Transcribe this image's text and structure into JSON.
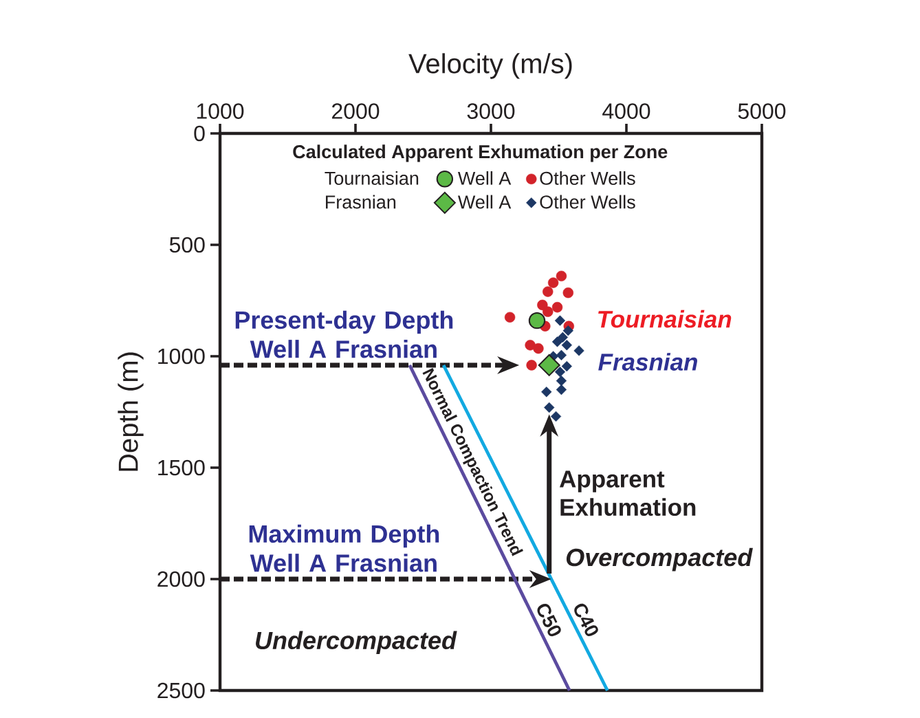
{
  "chart_data": {
    "type": "scatter",
    "xlabel": "Velocity (m/s)",
    "ylabel": "Depth (m)",
    "xlim": [
      1000,
      5000
    ],
    "xticks": [
      1000,
      2000,
      3000,
      4000,
      5000
    ],
    "ylim": [
      2500,
      0
    ],
    "yticks": [
      0,
      500,
      1000,
      1500,
      2000,
      2500
    ],
    "legend": "top",
    "legend_title": "Calculated Apparent Exhumation per Zone",
    "series": [
      {
        "name": "Well A",
        "color": "#5cb946",
        "marker": "circle",
        "x": [
          3340
        ],
        "values": [
          840
        ]
      },
      {
        "name": "Other Wells",
        "color": "#d2232a",
        "marker": "circle",
        "x": [
          3520,
          3460,
          3420,
          3570,
          3380,
          3490,
          3420,
          3140,
          3400,
          3575,
          3290,
          3350,
          3300
        ],
        "values": [
          640,
          670,
          710,
          715,
          770,
          780,
          800,
          825,
          865,
          865,
          950,
          965,
          1040
        ]
      },
      {
        "name": "Well A",
        "color": "#5cb946",
        "marker": "diamond",
        "x": [
          3430
        ],
        "values": [
          1040
        ]
      },
      {
        "name": "Other Wells",
        "color": "#1c3764",
        "marker": "diamond",
        "x": [
          3510,
          3570,
          3530,
          3490,
          3560,
          3650,
          3520,
          3460,
          3560,
          3510,
          3520,
          3410,
          3520,
          3430,
          3480
        ],
        "values": [
          840,
          885,
          915,
          935,
          950,
          975,
          995,
          1000,
          1045,
          1070,
          1110,
          1160,
          1150,
          1230,
          1270
        ]
      },
      {
        "name": "C50",
        "type": "line",
        "color": "#5b4b9f",
        "x": [
          2400,
          3580
        ],
        "values": [
          1040,
          2500
        ]
      },
      {
        "name": "C40",
        "type": "line",
        "color": "#12a9e1",
        "x": [
          2650,
          3860
        ],
        "values": [
          1040,
          2500
        ]
      }
    ],
    "ref_lines": [
      {
        "axis": "y",
        "value": 1040,
        "label": "Present-day Depth Well A Frasnian",
        "line_style": "dashed",
        "color": "#231f20"
      },
      {
        "axis": "y",
        "value": 2000,
        "label": "Maximum Depth Well A Frasnian",
        "line_style": "dashed",
        "color": "#231f20"
      }
    ],
    "annotations": [
      {
        "text": "Apparent Exhumation",
        "x": 3430,
        "y": 1230
      },
      {
        "text": "Normal Compaction Trend",
        "x": 2780,
        "y": 1500
      },
      "Undercompacted",
      "Overcompacted",
      "Tournaisian",
      "Frasnian",
      "Tournaisian",
      "Frasnian"
    ]
  }
}
